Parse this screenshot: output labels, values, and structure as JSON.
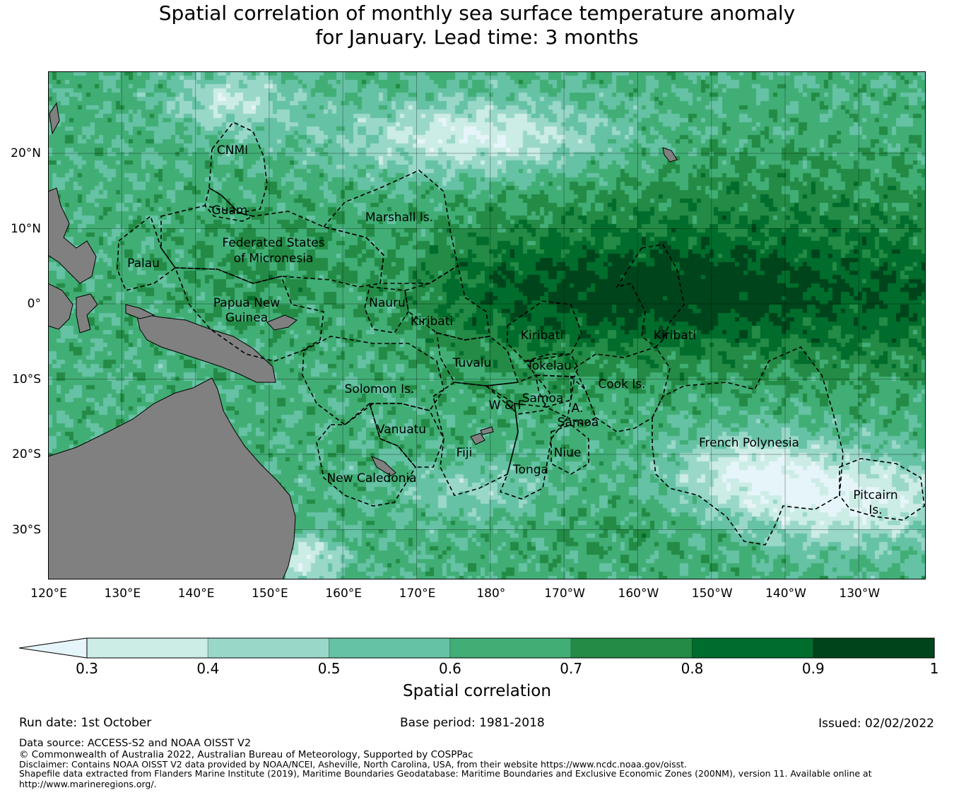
{
  "title": [
    "Spatial correlation of monthly sea surface temperature anomaly",
    "for January. Lead time: 3 months"
  ],
  "map": {
    "lon_ticks": [
      "120°E",
      "130°E",
      "140°E",
      "150°E",
      "160°E",
      "170°E",
      "180°",
      "170°W",
      "160°W",
      "150°W",
      "140°W",
      "130°W"
    ],
    "lat_ticks": [
      "20°N",
      "10°N",
      "0°",
      "10°S",
      "20°S",
      "30°S"
    ],
    "regions": {
      "cnmi": "CNMI",
      "guam": "Guam",
      "marshall": "Marshall Is.",
      "fsm1": "Federated States",
      "fsm2": "of Micronesia",
      "palau": "Palau",
      "png1": "Papua New",
      "png2": "Guinea",
      "nauru": "Nauru",
      "kiribati1": "Kiribati",
      "kiribati2": "Kiribati",
      "kiribati3": "Kiribati",
      "tuvalu": "Tuvalu",
      "tokelau": "Tokelau",
      "cook": "Cook Is.",
      "solomon": "Solomon Is.",
      "samoa": "Samoa",
      "wf": "W & F",
      "asamoa1": "A.",
      "asamoa2": "Samoa",
      "vanuatu": "Vanuatu",
      "frpoly": "French Polynesia",
      "fiji": "Fiji",
      "niue": "Niue",
      "tonga": "Tonga",
      "newcal": "New Caledonia",
      "pitcairn1": "Pitcairn",
      "pitcairn2": "Is."
    },
    "land_color": "#808080"
  },
  "colorbar": {
    "ticks": [
      "0.3",
      "0.4",
      "0.5",
      "0.6",
      "0.7",
      "0.8",
      "0.9",
      "1"
    ],
    "levels": [
      0.3,
      0.4,
      0.5,
      0.6,
      0.7,
      0.8,
      0.9,
      1.0
    ],
    "under_color": "#e5f5f9",
    "colors": [
      "#ccece6",
      "#99d8c9",
      "#66c2a4",
      "#41ae76",
      "#238b45",
      "#006d2c",
      "#00441b"
    ],
    "label": "Spatial correlation"
  },
  "footer": {
    "run_date": "Run date: 1st October",
    "base_period": "Base period: 1981-2018",
    "issued": "Issued: 02/02/2022",
    "data_source": "Data source: ACCESS-S2 and NOAA OISST V2",
    "copyright": "© Commonwealth of Australia 2022, Australian Bureau of Meteorology, Supported by COSPPac",
    "disclaimer": "Disclaimer: Contains NOAA OISST V2 data provided by NOAA/NCEI, Asheville, North Carolina, USA, from their website https://www.ncdc.noaa.gov/oisst.",
    "shapefile1": "Shapefile data extracted from Flanders Marine Institute (2019), Maritime Boundaries Geodatabase: Maritime Boundaries and Exclusive Economic Zones (200NM), version 11. Available online at",
    "shapefile2": "http://www.marineregions.org/."
  }
}
